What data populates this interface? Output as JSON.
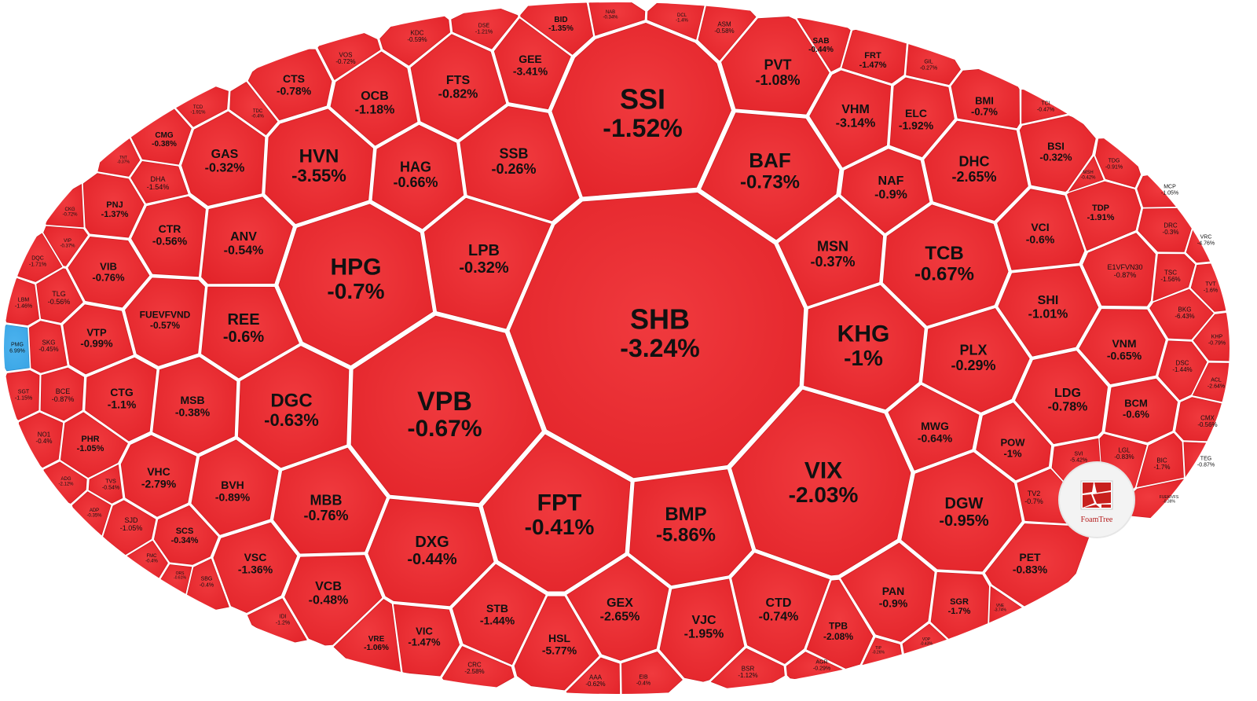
{
  "chart_data": {
    "type": "heatmap",
    "subtype": "voronoi-treemap",
    "title": "",
    "colors": {
      "down": "#e8272b",
      "up": "#3aa6e6",
      "outline": "#ffffff"
    },
    "branding": {
      "label": "FoamTree"
    },
    "cells": [
      {
        "ticker": "SHB",
        "change": "-3.24%"
      },
      {
        "ticker": "SSI",
        "change": "-1.52%"
      },
      {
        "ticker": "VPB",
        "change": "-0.67%"
      },
      {
        "ticker": "HPG",
        "change": "-0.7%"
      },
      {
        "ticker": "VIX",
        "change": "-2.03%"
      },
      {
        "ticker": "FPT",
        "change": "-0.41%"
      },
      {
        "ticker": "KHG",
        "change": "-1%"
      },
      {
        "ticker": "BMP",
        "change": "-5.86%"
      },
      {
        "ticker": "BAF",
        "change": "-0.73%"
      },
      {
        "ticker": "TCB",
        "change": "-0.67%"
      },
      {
        "ticker": "HVN",
        "change": "-3.55%"
      },
      {
        "ticker": "DGC",
        "change": "-0.63%"
      },
      {
        "ticker": "LPB",
        "change": "-0.32%"
      },
      {
        "ticker": "DGW",
        "change": "-0.95%"
      },
      {
        "ticker": "DXG",
        "change": "-0.44%"
      },
      {
        "ticker": "PVT",
        "change": "-1.08%"
      },
      {
        "ticker": "SSB",
        "change": "-0.26%"
      },
      {
        "ticker": "HAG",
        "change": "-0.66%"
      },
      {
        "ticker": "DHC",
        "change": "-2.65%"
      },
      {
        "ticker": "MSN",
        "change": "-0.37%"
      },
      {
        "ticker": "PLX",
        "change": "-0.29%"
      },
      {
        "ticker": "REE",
        "change": "-0.6%"
      },
      {
        "ticker": "MBB",
        "change": "-0.76%"
      },
      {
        "ticker": "VHM",
        "change": "-3.14%"
      },
      {
        "ticker": "FTS",
        "change": "-0.82%"
      },
      {
        "ticker": "GEX",
        "change": "-2.65%"
      },
      {
        "ticker": "VJC",
        "change": "-1.95%"
      },
      {
        "ticker": "CTD",
        "change": "-0.74%"
      },
      {
        "ticker": "VCB",
        "change": "-0.48%"
      },
      {
        "ticker": "NAF",
        "change": "-0.9%"
      },
      {
        "ticker": "ANV",
        "change": "-0.54%"
      },
      {
        "ticker": "GAS",
        "change": "-0.32%"
      },
      {
        "ticker": "OCB",
        "change": "-1.18%"
      },
      {
        "ticker": "SHI",
        "change": "-1.01%"
      },
      {
        "ticker": "LDG",
        "change": "-0.78%"
      },
      {
        "ticker": "ELC",
        "change": "-1.92%"
      },
      {
        "ticker": "STB",
        "change": "-1.44%"
      },
      {
        "ticker": "HSL",
        "change": "-5.77%"
      },
      {
        "ticker": "MSB",
        "change": "-0.38%"
      },
      {
        "ticker": "BVH",
        "change": "-0.89%"
      },
      {
        "ticker": "VSC",
        "change": "-1.36%"
      },
      {
        "ticker": "PAN",
        "change": "-0.9%"
      },
      {
        "ticker": "VCI",
        "change": "-0.6%"
      },
      {
        "ticker": "MWG",
        "change": "-0.64%"
      },
      {
        "ticker": "GEE",
        "change": "-3.41%"
      },
      {
        "ticker": "VNM",
        "change": "-0.65%"
      },
      {
        "ticker": "PET",
        "change": "-0.83%"
      },
      {
        "ticker": "TPB",
        "change": "-2.08%"
      },
      {
        "ticker": "VHC",
        "change": "-2.79%"
      },
      {
        "ticker": "CTR",
        "change": "-0.56%"
      },
      {
        "ticker": "CTS",
        "change": "-0.78%"
      },
      {
        "ticker": "BSI",
        "change": "-0.32%"
      },
      {
        "ticker": "VIC",
        "change": "-1.47%"
      },
      {
        "ticker": "CTG",
        "change": "-1.1%"
      },
      {
        "ticker": "VIB",
        "change": "-0.76%"
      },
      {
        "ticker": "FUEVFVND",
        "change": "-0.57%"
      },
      {
        "ticker": "VTP",
        "change": "-0.99%"
      },
      {
        "ticker": "POW",
        "change": "-1%"
      },
      {
        "ticker": "BCM",
        "change": "-0.6%"
      },
      {
        "ticker": "BMI",
        "change": "-0.7%"
      },
      {
        "ticker": "TDP",
        "change": "-1.91%"
      },
      {
        "ticker": "PNJ",
        "change": "-1.37%"
      },
      {
        "ticker": "PHR",
        "change": "-1.05%"
      },
      {
        "ticker": "SCS",
        "change": "-0.34%"
      },
      {
        "ticker": "SGR",
        "change": "-1.7%"
      },
      {
        "ticker": "FRT",
        "change": "-1.47%"
      },
      {
        "ticker": "E1VFVN30",
        "change": "-0.87%"
      },
      {
        "ticker": "VRE",
        "change": "-1.06%"
      },
      {
        "ticker": "CMG",
        "change": "-0.38%"
      },
      {
        "ticker": "DHA",
        "change": "-1.54%"
      },
      {
        "ticker": "SAB",
        "change": "-0.44%"
      },
      {
        "ticker": "BID",
        "change": "-1.35%"
      },
      {
        "ticker": "TLG",
        "change": "-0.56%"
      },
      {
        "ticker": "SKG",
        "change": "-0.45%"
      },
      {
        "ticker": "BCE",
        "change": "-0.87%"
      },
      {
        "ticker": "CRC",
        "change": "-2.58%"
      },
      {
        "ticker": "NO1",
        "change": "-0.4%"
      },
      {
        "ticker": "SJD",
        "change": "-1.05%"
      },
      {
        "ticker": "BKG",
        "change": "-6.43%"
      },
      {
        "ticker": "DSC",
        "change": "-1.44%"
      },
      {
        "ticker": "DRC",
        "change": "-0.3%"
      },
      {
        "ticker": "TSC",
        "change": "-1.56%"
      },
      {
        "ticker": "LGL",
        "change": "-0.83%"
      },
      {
        "ticker": "BIC",
        "change": "-1.7%"
      },
      {
        "ticker": "TV2",
        "change": "-0.7%"
      },
      {
        "ticker": "SVI",
        "change": "-5.42%"
      },
      {
        "ticker": "VOS",
        "change": "-0.72%"
      },
      {
        "ticker": "KDC",
        "change": "-0.59%"
      },
      {
        "ticker": "DSE",
        "change": "-1.21%"
      },
      {
        "ticker": "ASM",
        "change": "-0.58%"
      },
      {
        "ticker": "AAA",
        "change": "-0.62%"
      },
      {
        "ticker": "EIB",
        "change": "-0.4%"
      },
      {
        "ticker": "BSR",
        "change": "-1.12%"
      },
      {
        "ticker": "AGR",
        "change": "-0.29%"
      },
      {
        "ticker": "CMX",
        "change": "-0.56%"
      },
      {
        "ticker": "TEG",
        "change": "-0.87%"
      },
      {
        "ticker": "MCP",
        "change": "-1.05%"
      },
      {
        "ticker": "TVT",
        "change": "-1.6%"
      },
      {
        "ticker": "KHP",
        "change": "-0.79%"
      },
      {
        "ticker": "ACL",
        "change": "-2.64%"
      },
      {
        "ticker": "VRC",
        "change": "-4.76%"
      },
      {
        "ticker": "TCI",
        "change": "-0.47%"
      },
      {
        "ticker": "TDG",
        "change": "-0.91%"
      },
      {
        "ticker": "MSH",
        "change": "-0.42%"
      },
      {
        "ticker": "GIL",
        "change": "-0.27%"
      },
      {
        "ticker": "LBM",
        "change": "-1.46%"
      },
      {
        "ticker": "DQC",
        "change": "-1.71%"
      },
      {
        "ticker": "SGT",
        "change": "-1.15%"
      },
      {
        "ticker": "CKG",
        "change": "-0.72%"
      },
      {
        "ticker": "VIP",
        "change": "-0.37%"
      },
      {
        "ticker": "TCD",
        "change": "-1.91%"
      },
      {
        "ticker": "TDC",
        "change": "-0.4%"
      },
      {
        "ticker": "TNT",
        "change": "-0.37%"
      },
      {
        "ticker": "NAB",
        "change": "-0.34%"
      },
      {
        "ticker": "DCL",
        "change": "-1.4%"
      },
      {
        "ticker": "ADG",
        "change": "-2.12%"
      },
      {
        "ticker": "TVS",
        "change": "-0.54%"
      },
      {
        "ticker": "ADP",
        "change": "-0.35%"
      },
      {
        "ticker": "FMC",
        "change": "-0.4%"
      },
      {
        "ticker": "SBG",
        "change": "-0.4%"
      },
      {
        "ticker": "IDI",
        "change": "-1.2%"
      },
      {
        "ticker": "VNE",
        "change": "-3.74%"
      },
      {
        "ticker": "VDP",
        "change": "-0.43%"
      },
      {
        "ticker": "TIP",
        "change": "-0.26%"
      },
      {
        "ticker": "ORS",
        "change": "-0.61%"
      },
      {
        "ticker": "FUEKIVFS",
        "change": "-0.38%"
      },
      {
        "ticker": "PMG",
        "change": "6.99%"
      }
    ]
  }
}
